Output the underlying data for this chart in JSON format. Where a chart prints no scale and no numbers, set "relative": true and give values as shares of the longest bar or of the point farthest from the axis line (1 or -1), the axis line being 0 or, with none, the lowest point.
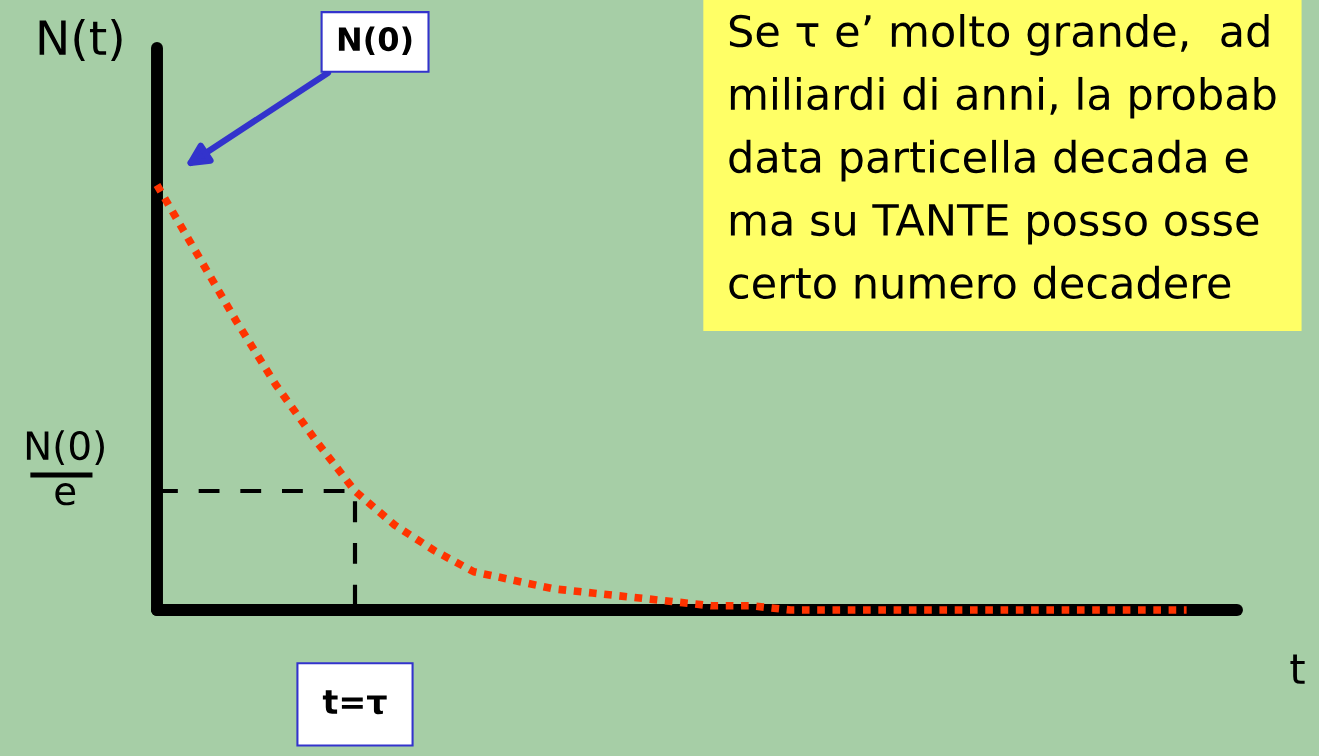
{
  "chart_data": {
    "type": "line",
    "ylabel": "N(t)",
    "xlabel": "t",
    "relative": true,
    "line_style": "dotted",
    "categories": [
      null,
      null,
      null,
      null,
      null,
      null,
      null,
      null,
      null,
      null,
      null,
      null,
      null,
      null,
      null,
      null,
      null,
      null,
      null,
      null,
      null,
      null,
      null,
      null,
      null,
      null,
      null
    ],
    "series": [
      {
        "color": "#ff3300",
        "values": [
          1,
          0.84,
          0.68,
          0.53,
          0.4,
          0.28,
          0.2,
          0.14,
          0.09,
          0.07,
          0.05,
          0.04,
          0.03,
          0.02,
          0.01,
          0.01,
          0,
          0,
          0,
          0,
          0,
          0,
          0,
          0,
          0,
          0,
          0
        ]
      }
    ],
    "ref_lines": [
      {
        "axis": "y",
        "value": 0.28,
        "label": "N(0)\ne",
        "color": "#000000",
        "line_style": "dashed"
      }
    ],
    "annotations": [
      "N(0)",
      "t=τ",
      "Se τ e’ molto grande,  ad\nmiliardi di anni, la probab\ndata particella decada e\nma su TANTE posso osse\ncerto numero decadere"
    ]
  }
}
